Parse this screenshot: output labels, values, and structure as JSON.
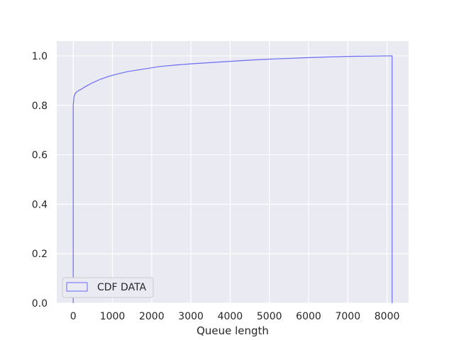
{
  "chart_data": {
    "type": "line",
    "title": "",
    "xlabel": "Queue length",
    "ylabel": "",
    "xlim": [
      -420,
      8550
    ],
    "ylim": [
      0,
      1.06
    ],
    "x_ticks": [
      0,
      1000,
      2000,
      3000,
      4000,
      5000,
      6000,
      7000,
      8000
    ],
    "x_tick_labels": [
      "0",
      "1000",
      "2000",
      "3000",
      "4000",
      "5000",
      "6000",
      "7000",
      "8000"
    ],
    "y_ticks": [
      0.0,
      0.2,
      0.4,
      0.6,
      0.8,
      1.0
    ],
    "y_tick_labels": [
      "0.0",
      "0.2",
      "0.4",
      "0.6",
      "0.8",
      "1.0"
    ],
    "grid": true,
    "legend_position": "lower-left",
    "series": [
      {
        "name": "CDF DATA",
        "color": "#6b6bf5",
        "x": [
          0,
          0,
          10,
          20,
          50,
          100,
          200,
          300,
          500,
          700,
          900,
          1100,
          1400,
          1800,
          2200,
          2600,
          3000,
          3500,
          4000,
          4500,
          5000,
          5500,
          6000,
          6500,
          7000,
          7500,
          8000,
          8130,
          8130
        ],
        "y": [
          0,
          0.8,
          0.82,
          0.835,
          0.848,
          0.856,
          0.865,
          0.875,
          0.892,
          0.906,
          0.917,
          0.926,
          0.937,
          0.947,
          0.957,
          0.963,
          0.968,
          0.973,
          0.978,
          0.983,
          0.987,
          0.99,
          0.993,
          0.996,
          0.998,
          0.999,
          1.0,
          1.0,
          0
        ]
      }
    ]
  }
}
